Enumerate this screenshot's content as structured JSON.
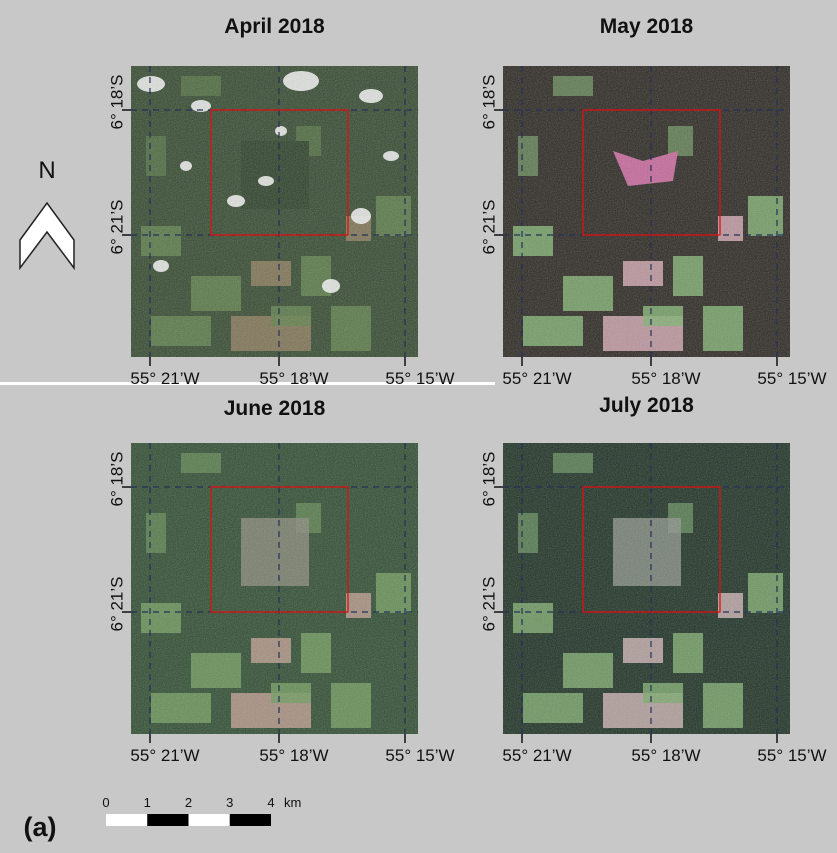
{
  "figure_label": "(a)",
  "north_arrow": {
    "label": "N"
  },
  "scale_bar": {
    "ticks": [
      0,
      1,
      2,
      3,
      4
    ],
    "unit": "km"
  },
  "panels": [
    {
      "title": "April 2018",
      "lat_labels": [
        "6° 18’S",
        "6° 21’S"
      ],
      "lon_labels": [
        "55° 21’W",
        "55° 18’W",
        "55° 15’W"
      ]
    },
    {
      "title": "May 2018",
      "lat_labels": [
        "6° 18’S",
        "6° 21’S"
      ],
      "lon_labels": [
        "55° 21’W",
        "55° 18’W",
        "55° 15’W"
      ]
    },
    {
      "title": "June 2018",
      "lat_labels": [
        "6° 18’S",
        "6° 21’S"
      ],
      "lon_labels": [
        "55° 21’W",
        "55° 18’W",
        "55° 15’W"
      ]
    },
    {
      "title": "July 2018",
      "lat_labels": [
        "6° 18’S",
        "6° 21’S"
      ],
      "lon_labels": [
        "55° 21’W",
        "55° 18’W",
        "55° 15’W"
      ]
    }
  ]
}
